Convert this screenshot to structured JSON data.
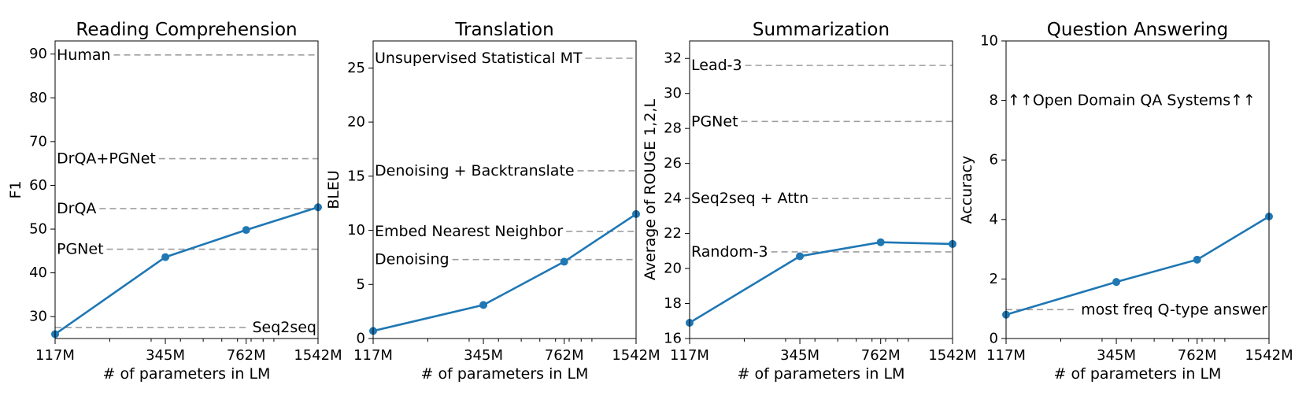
{
  "chart_data": [
    {
      "type": "line",
      "title": "Reading Comprehension",
      "xlabel": "# of parameters in LM",
      "ylabel": "F1",
      "x_scale": "log",
      "x": [
        117,
        345,
        762,
        1542
      ],
      "x_tick_labels": [
        "117M",
        "345M",
        "762M",
        "1542M"
      ],
      "ylim": [
        25,
        93
      ],
      "y_ticks": [
        30,
        40,
        50,
        60,
        70,
        80,
        90
      ],
      "series": [
        {
          "values": [
            26.0,
            43.6,
            49.8,
            55.0
          ]
        }
      ],
      "references": [
        {
          "label": "Human",
          "value": 89.8,
          "label_align": "left"
        },
        {
          "label": "DrQA+PGNet",
          "value": 66.1,
          "label_align": "left"
        },
        {
          "label": "DrQA",
          "value": 54.7,
          "label_align": "left"
        },
        {
          "label": "PGNet",
          "value": 45.4,
          "label_align": "left"
        },
        {
          "label": "Seq2seq",
          "value": 27.5,
          "label_align": "right"
        }
      ]
    },
    {
      "type": "line",
      "title": "Translation",
      "xlabel": "# of parameters in LM",
      "ylabel": "BLEU",
      "x_scale": "log",
      "x": [
        117,
        345,
        762,
        1542
      ],
      "x_tick_labels": [
        "117M",
        "345M",
        "762M",
        "1542M"
      ],
      "ylim": [
        0,
        27.5
      ],
      "y_ticks": [
        0,
        5,
        10,
        15,
        20,
        25
      ],
      "series": [
        {
          "values": [
            0.7,
            3.1,
            7.1,
            11.5
          ]
        }
      ],
      "references": [
        {
          "label": "Unsupervised Statistical MT",
          "value": 25.9,
          "label_align": "left"
        },
        {
          "label": "Denoising + Backtranslate",
          "value": 15.5,
          "label_align": "left"
        },
        {
          "label": "Embed Nearest Neighbor",
          "value": 9.9,
          "label_align": "left"
        },
        {
          "label": "Denoising",
          "value": 7.3,
          "label_align": "left"
        }
      ]
    },
    {
      "type": "line",
      "title": "Summarization",
      "xlabel": "# of parameters in LM",
      "ylabel": "Average of ROUGE 1,2,L",
      "x_scale": "log",
      "x": [
        117,
        345,
        762,
        1542
      ],
      "x_tick_labels": [
        "117M",
        "345M",
        "762M",
        "1542M"
      ],
      "ylim": [
        16,
        33
      ],
      "y_ticks": [
        16,
        18,
        20,
        22,
        24,
        26,
        28,
        30,
        32
      ],
      "series": [
        {
          "values": [
            16.9,
            20.7,
            21.5,
            21.4
          ]
        }
      ],
      "references": [
        {
          "label": "Lead-3",
          "value": 31.6,
          "label_align": "left"
        },
        {
          "label": "PGNet",
          "value": 28.4,
          "label_align": "left"
        },
        {
          "label": "Seq2seq + Attn",
          "value": 24.0,
          "label_align": "left"
        },
        {
          "label": "Random-3",
          "value": 20.95,
          "label_align": "left"
        }
      ]
    },
    {
      "type": "line",
      "title": "Question Answering",
      "xlabel": "# of parameters in LM",
      "ylabel": "Accuracy",
      "x_scale": "log",
      "x": [
        117,
        345,
        762,
        1542
      ],
      "x_tick_labels": [
        "117M",
        "345M",
        "762M",
        "1542M"
      ],
      "ylim": [
        0,
        10
      ],
      "y_ticks": [
        0,
        2,
        4,
        6,
        8,
        10
      ],
      "series": [
        {
          "values": [
            0.8,
            1.9,
            2.65,
            4.1
          ]
        }
      ],
      "references": [
        {
          "label": "most freq Q-type answer",
          "value": 0.97,
          "label_align": "right"
        }
      ],
      "annotation": "↑↑Open Domain QA Systems↑↑"
    }
  ],
  "colors": {
    "series": "#1f77b4",
    "reference": "#9e9e9e",
    "axes": "#000000",
    "background": "#ffffff"
  }
}
